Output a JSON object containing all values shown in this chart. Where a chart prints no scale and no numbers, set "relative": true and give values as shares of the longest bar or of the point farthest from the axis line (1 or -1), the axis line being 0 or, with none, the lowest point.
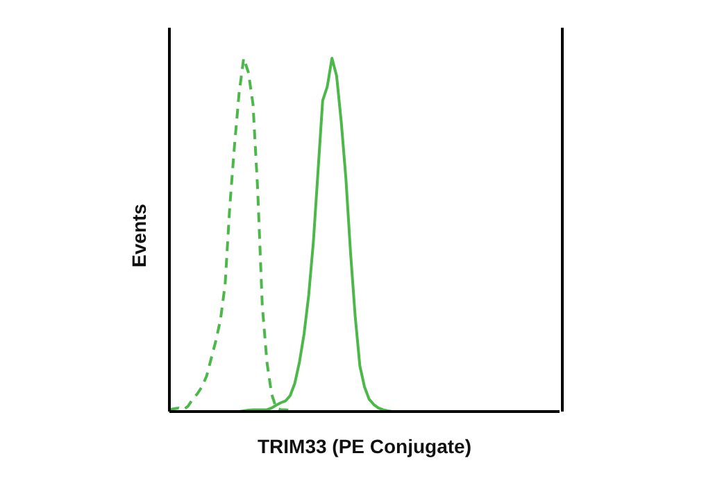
{
  "chart_data": {
    "type": "line",
    "relative": true,
    "xlabel": "TRIM33 (PE Conjugate)",
    "ylabel": "Events",
    "grid": false,
    "legend": false,
    "marker": "none",
    "categories": [
      null,
      null,
      null,
      null,
      null,
      null,
      null,
      null,
      null,
      null,
      null,
      null,
      null,
      null,
      null,
      null,
      null,
      null,
      null,
      null,
      null,
      null,
      null,
      null,
      null,
      null,
      null,
      null,
      null,
      null,
      null,
      null,
      null,
      null,
      null,
      null,
      null,
      null,
      null,
      null,
      null,
      null,
      null,
      null,
      null,
      null,
      null,
      null,
      null,
      null,
      null,
      null,
      null,
      null,
      null,
      null,
      null,
      null,
      null,
      null,
      null,
      null,
      null,
      null,
      null,
      null,
      null,
      null,
      null,
      null,
      null,
      null,
      null,
      null,
      null,
      null,
      null,
      null,
      null,
      null,
      null,
      null,
      null,
      null,
      null
    ],
    "series": [
      {
        "color": "#4cb84a",
        "line_style": "dashed",
        "values": [
          0.005,
          0.008,
          0.01,
          0.005,
          0.015,
          0.035,
          0.05,
          0.07,
          0.1,
          0.15,
          0.2,
          0.26,
          0.36,
          0.58,
          0.75,
          0.9,
          1.0,
          0.96,
          0.87,
          0.63,
          0.3,
          0.14,
          0.05,
          0.01,
          0.005,
          0.005,
          0.003,
          0,
          0,
          null,
          null,
          null,
          null,
          null,
          null,
          null,
          null,
          null,
          null,
          null,
          null,
          null,
          null,
          null,
          null,
          null,
          null,
          null,
          null,
          null,
          null,
          null,
          null,
          null,
          null,
          null,
          null,
          null,
          null,
          null,
          null,
          null,
          null,
          null,
          null,
          null,
          null,
          null,
          null,
          null,
          null,
          null,
          null,
          null,
          null,
          null,
          null,
          null,
          null,
          null,
          null,
          null,
          null,
          null,
          null
        ]
      },
      {
        "color": "#4cb84a",
        "line_style": "solid",
        "values": [
          null,
          null,
          null,
          null,
          null,
          null,
          null,
          null,
          null,
          null,
          null,
          null,
          null,
          null,
          null,
          0,
          0.002,
          0.004,
          0.005,
          0.005,
          0.005,
          0.005,
          0.01,
          0.018,
          0.025,
          0.03,
          0.045,
          0.08,
          0.14,
          0.22,
          0.33,
          0.48,
          0.68,
          0.88,
          0.92,
          1.0,
          0.95,
          0.82,
          0.66,
          0.45,
          0.27,
          0.13,
          0.07,
          0.035,
          0.02,
          0.01,
          0.005,
          0.002,
          0,
          null,
          null,
          null,
          null,
          null,
          null,
          null,
          null,
          null,
          null,
          null,
          null,
          null,
          null,
          null,
          null,
          null,
          null,
          null,
          null,
          null,
          null,
          null,
          null,
          null,
          null,
          null,
          null,
          null,
          null,
          null,
          null,
          null,
          null,
          null,
          null
        ]
      }
    ]
  }
}
